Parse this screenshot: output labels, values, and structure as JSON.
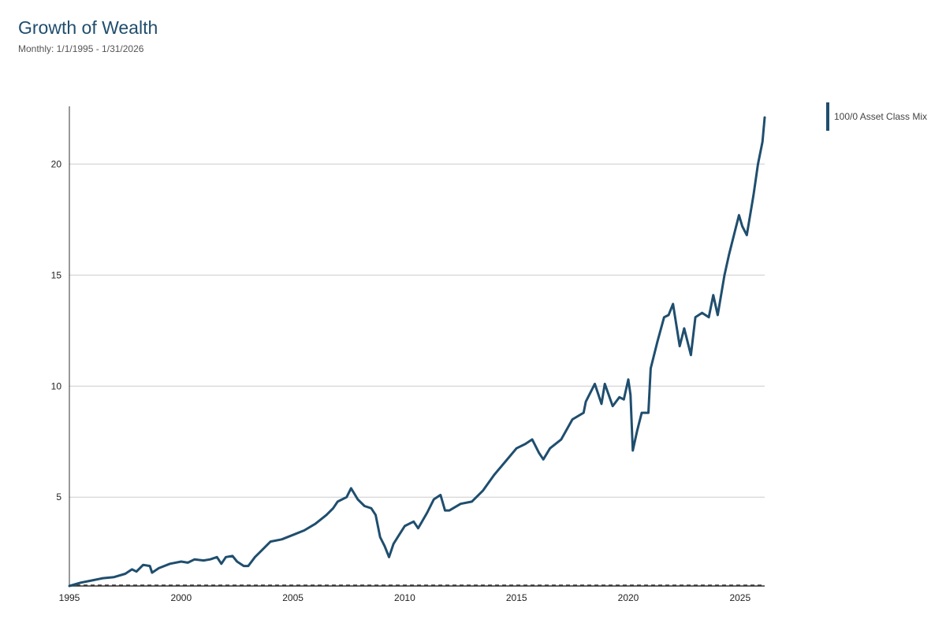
{
  "header": {
    "title": "Growth of Wealth",
    "subtitle": "Monthly: 1/1/1995 - 1/31/2026"
  },
  "legend": {
    "items": [
      {
        "label": "100/0 Asset Class Mix",
        "color": "#1f4e6e"
      }
    ]
  },
  "colors": {
    "series": "#1f4e6e",
    "grid": "#cccccc",
    "axis": "#333333",
    "baseline": "#333333"
  },
  "chart_data": {
    "type": "line",
    "title": "Growth of Wealth",
    "subtitle": "Monthly: 1/1/1995 - 1/31/2026",
    "xlabel": "",
    "ylabel": "",
    "xlim": [
      1995.0,
      2026.1
    ],
    "ylim": [
      1.0,
      22.6
    ],
    "grid": true,
    "legend_position": "top-right",
    "x_ticks": [
      1995,
      2000,
      2005,
      2010,
      2015,
      2020,
      2025
    ],
    "y_ticks": [
      5,
      10,
      15,
      20
    ],
    "baseline": 1.0,
    "series": [
      {
        "name": "100/0 Asset Class Mix",
        "x": [
          1995.0,
          1995.5,
          1996.0,
          1996.5,
          1997.0,
          1997.5,
          1997.8,
          1998.0,
          1998.3,
          1998.6,
          1998.7,
          1999.0,
          1999.5,
          2000.0,
          2000.3,
          2000.6,
          2001.0,
          2001.3,
          2001.6,
          2001.8,
          2002.0,
          2002.3,
          2002.5,
          2002.8,
          2003.0,
          2003.3,
          2003.5,
          2004.0,
          2004.5,
          2005.0,
          2005.5,
          2006.0,
          2006.5,
          2006.8,
          2007.0,
          2007.4,
          2007.6,
          2007.9,
          2008.2,
          2008.5,
          2008.7,
          2008.9,
          2009.1,
          2009.3,
          2009.5,
          2010.0,
          2010.4,
          2010.6,
          2011.0,
          2011.3,
          2011.6,
          2011.8,
          2012.0,
          2012.5,
          2013.0,
          2013.5,
          2014.0,
          2014.5,
          2015.0,
          2015.4,
          2015.7,
          2016.0,
          2016.2,
          2016.5,
          2017.0,
          2017.5,
          2018.0,
          2018.1,
          2018.5,
          2018.8,
          2018.95,
          2019.3,
          2019.6,
          2019.8,
          2020.0,
          2020.1,
          2020.2,
          2020.4,
          2020.6,
          2020.9,
          2021.0,
          2021.3,
          2021.6,
          2021.8,
          2022.0,
          2022.3,
          2022.5,
          2022.8,
          2023.0,
          2023.3,
          2023.6,
          2023.8,
          2024.0,
          2024.3,
          2024.5,
          2024.8,
          2024.95,
          2025.1,
          2025.3,
          2025.6,
          2025.8,
          2026.0,
          2026.1
        ],
        "values": [
          1.0,
          1.15,
          1.25,
          1.35,
          1.4,
          1.55,
          1.75,
          1.65,
          1.95,
          1.9,
          1.6,
          1.8,
          2.0,
          2.1,
          2.05,
          2.2,
          2.15,
          2.2,
          2.3,
          2.0,
          2.3,
          2.35,
          2.1,
          1.9,
          1.9,
          2.3,
          2.5,
          3.0,
          3.1,
          3.3,
          3.5,
          3.8,
          4.2,
          4.5,
          4.8,
          5.0,
          5.4,
          4.9,
          4.6,
          4.5,
          4.2,
          3.2,
          2.8,
          2.3,
          2.9,
          3.7,
          3.9,
          3.6,
          4.3,
          4.9,
          5.1,
          4.4,
          4.4,
          4.7,
          4.8,
          5.3,
          6.0,
          6.6,
          7.2,
          7.4,
          7.6,
          7.0,
          6.7,
          7.2,
          7.6,
          8.5,
          8.8,
          9.3,
          10.1,
          9.2,
          10.1,
          9.1,
          9.5,
          9.4,
          10.3,
          9.6,
          7.1,
          8.0,
          8.8,
          8.8,
          10.8,
          12.0,
          13.1,
          13.2,
          13.7,
          11.8,
          12.6,
          11.4,
          13.1,
          13.3,
          13.1,
          14.1,
          13.2,
          15.0,
          15.9,
          17.1,
          17.7,
          17.2,
          16.8,
          18.6,
          20.0,
          21.0,
          22.1
        ]
      }
    ]
  }
}
